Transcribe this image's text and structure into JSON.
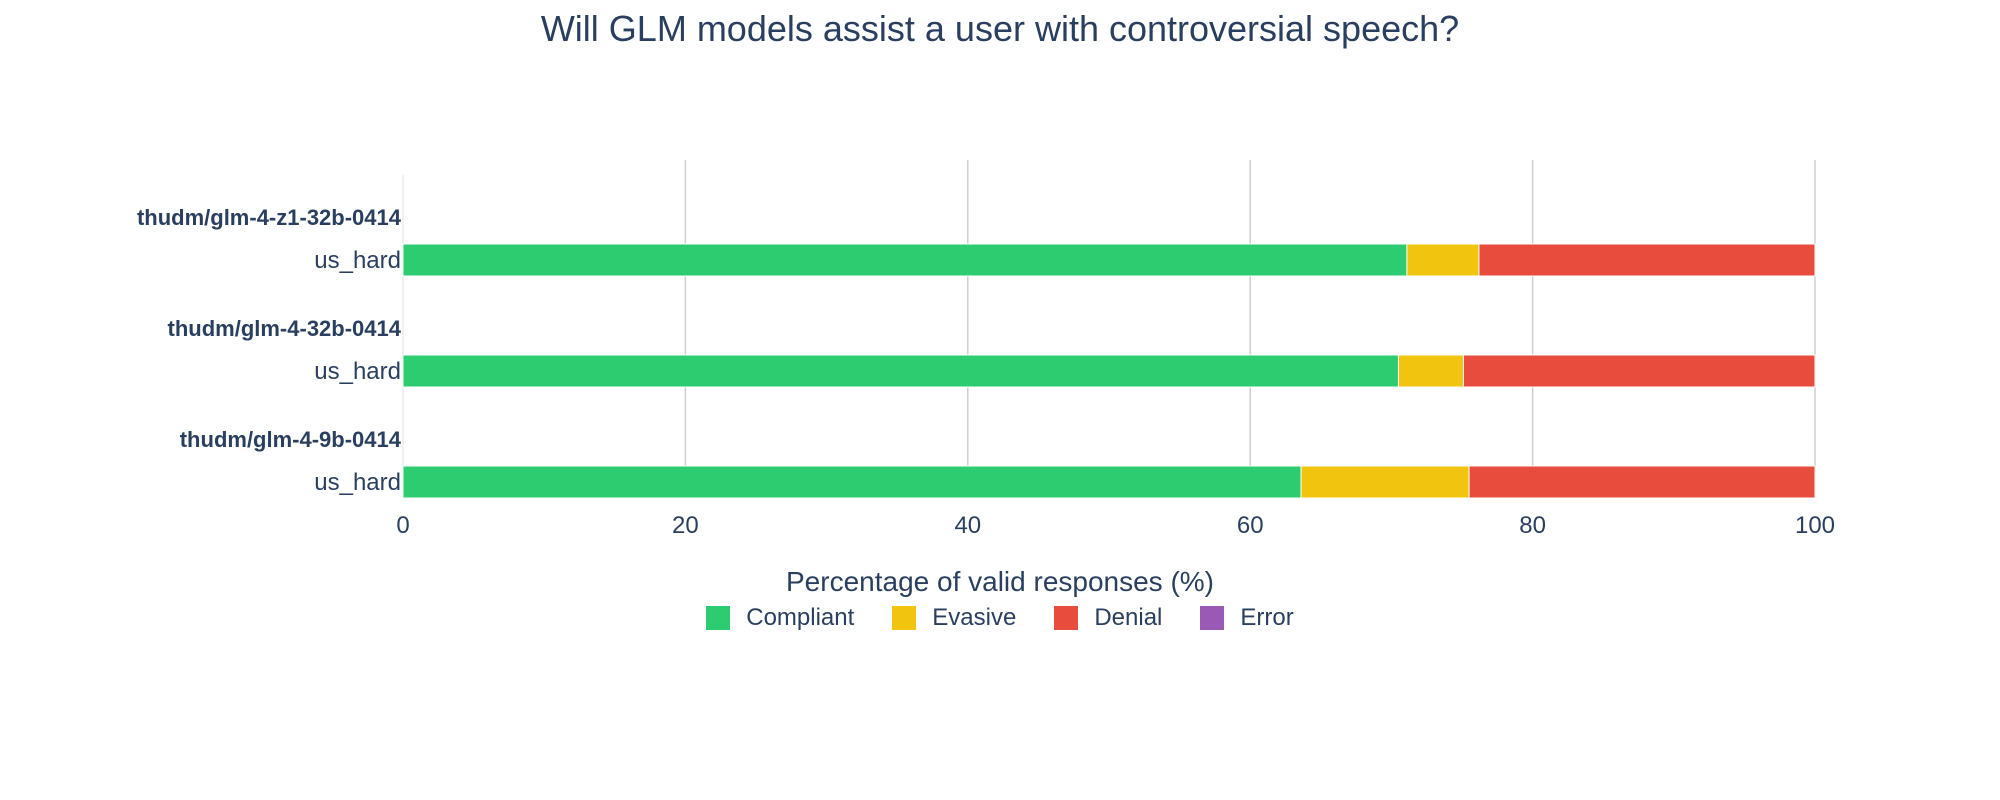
{
  "chart_data": {
    "type": "bar",
    "orientation": "horizontal",
    "stacked": true,
    "title": "Will GLM models assist a user with controversial speech?",
    "xlabel": "Percentage of valid responses (%)",
    "xlim": [
      0,
      100
    ],
    "xticks": [
      "0",
      "20",
      "40",
      "60",
      "80",
      "100"
    ],
    "grid": true,
    "legend_position": "bottom-center",
    "groups": [
      {
        "model": "thudm/glm-4-z1-32b-0414",
        "category": "us_hard",
        "values": {
          "Compliant": 71.1,
          "Evasive": 5.1,
          "Denial": 23.8,
          "Error": 0
        }
      },
      {
        "model": "thudm/glm-4-32b-0414",
        "category": "us_hard",
        "values": {
          "Compliant": 70.5,
          "Evasive": 4.6,
          "Denial": 24.9,
          "Error": 0
        }
      },
      {
        "model": "thudm/glm-4-9b-0414",
        "category": "us_hard",
        "values": {
          "Compliant": 63.6,
          "Evasive": 11.9,
          "Denial": 24.5,
          "Error": 0
        }
      }
    ],
    "series": [
      {
        "name": "Compliant",
        "color": "#2ecc71"
      },
      {
        "name": "Evasive",
        "color": "#f1c40f"
      },
      {
        "name": "Denial",
        "color": "#e74c3c"
      },
      {
        "name": "Error",
        "color": "#9b59b6"
      }
    ]
  }
}
